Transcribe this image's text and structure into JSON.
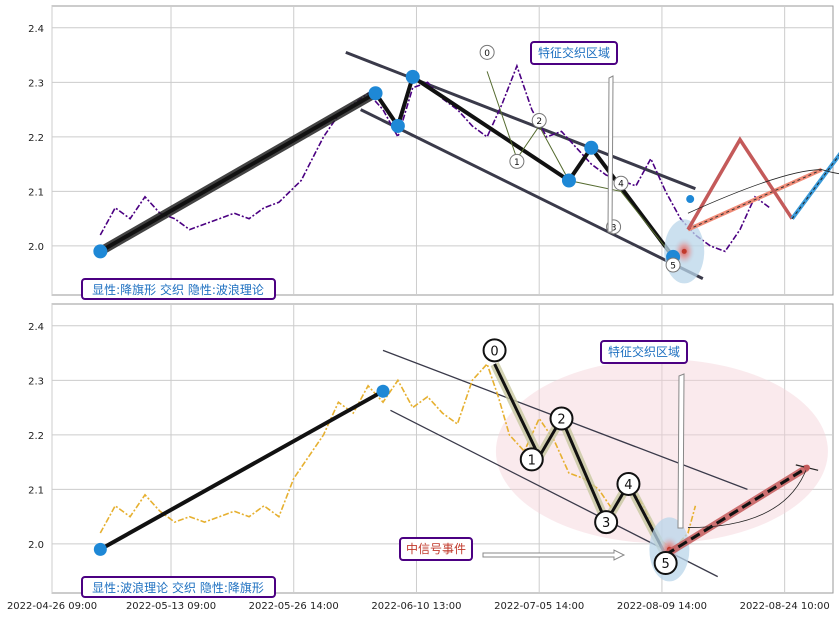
{
  "colors": {
    "grid": "#cccccc",
    "frame": "#999999",
    "top_price": "#4b0082",
    "bottom_price": "#e6b030",
    "pivot": "#1e88d6",
    "channel": "#3a3a4a",
    "box_border": "#4b0082",
    "box_text_blue": "#1e70c0",
    "box_text_red": "#c0392b",
    "proj_red": "#c45a5a",
    "proj_blue": "#3a9ad9",
    "proj_salmon": "#f08c78",
    "ellipse_fill": "#f3d0d6",
    "highlight_fill": "#b9d6ea"
  },
  "chart_data": [
    {
      "type": "line",
      "panel": "top",
      "ylim": [
        1.91,
        2.44
      ],
      "yticks": [
        "2.0",
        "2.1",
        "2.2",
        "2.3",
        "2.4"
      ],
      "ytick_values": [
        2.0,
        2.1,
        2.2,
        2.3,
        2.4
      ],
      "grid": true,
      "series_price": {
        "x": [
          0.0,
          2.0,
          4.0,
          6.0,
          8.0,
          10.0,
          12.0,
          14.0,
          16.0,
          18.0,
          20.0,
          22.0,
          24.0,
          25.5,
          27.0,
          28.5,
          30.0,
          32.0,
          34.0,
          36.0,
          38.0,
          40.0,
          42.0,
          44.0,
          46.0,
          48.0,
          50.0,
          52.0,
          54.0,
          56.0,
          58.0,
          60.0,
          62.0,
          64.0,
          66.0,
          68.0,
          70.0,
          72.0,
          74.0,
          76.0,
          78.0,
          80.0,
          82.0,
          84.0,
          86.0,
          88.0,
          90.0
        ],
        "y": [
          2.02,
          2.07,
          2.05,
          2.09,
          2.06,
          2.05,
          2.03,
          2.04,
          2.05,
          2.06,
          2.05,
          2.07,
          2.08,
          2.1,
          2.12,
          2.16,
          2.2,
          2.24,
          2.26,
          2.28,
          2.25,
          2.2,
          2.29,
          2.3,
          2.27,
          2.25,
          2.22,
          2.2,
          2.26,
          2.33,
          2.25,
          2.2,
          2.21,
          2.18,
          2.15,
          2.13,
          2.12,
          2.11,
          2.16,
          2.1,
          2.05,
          2.02,
          2.0,
          1.99,
          2.03,
          2.09,
          2.07
        ]
      },
      "zigzag": {
        "x": [
          0.0,
          37.0,
          40.0,
          42.0,
          63.0,
          66.0,
          77.0
        ],
        "y": [
          1.99,
          2.28,
          2.22,
          2.31,
          2.12,
          2.18,
          1.98
        ]
      },
      "pivots": {
        "x": [
          0.0,
          37.0,
          40.0,
          42.0,
          63.0,
          66.0,
          77.0
        ],
        "y": [
          1.99,
          2.28,
          2.22,
          2.31,
          2.12,
          2.18,
          1.98
        ]
      },
      "channel": [
        {
          "x": [
            33.0,
            80.0
          ],
          "y": [
            2.355,
            2.105
          ]
        },
        {
          "x": [
            35.0,
            81.0
          ],
          "y": [
            2.25,
            1.94
          ]
        }
      ],
      "wave_labels": [
        {
          "label": "0",
          "x": 52.0,
          "y": 2.355
        },
        {
          "label": "1",
          "x": 56.0,
          "y": 2.155
        },
        {
          "label": "2",
          "x": 59.0,
          "y": 2.23
        },
        {
          "label": "3",
          "x": 69.0,
          "y": 2.035
        },
        {
          "label": "4",
          "x": 70.0,
          "y": 2.115
        },
        {
          "label": "5",
          "x": 77.0,
          "y": 1.965
        }
      ],
      "projection": {
        "red_zigzag": {
          "x": [
            79.0,
            86.0,
            93.0
          ],
          "y": [
            2.03,
            2.195,
            2.05
          ]
        },
        "blue": {
          "x": [
            93.0,
            112.0
          ],
          "y": [
            2.05,
            2.4
          ]
        },
        "salmon": {
          "x": [
            79.0,
            97.0
          ],
          "y": [
            2.03,
            2.14
          ]
        }
      },
      "box_feature": {
        "text": "特征交织区域",
        "x": 77.0,
        "y": 2.35
      },
      "box_label": {
        "text": "显性:降旗形 交织 隐性:波浪理论"
      }
    },
    {
      "type": "line",
      "panel": "bottom",
      "ylim": [
        1.91,
        2.44
      ],
      "yticks": [
        "2.0",
        "2.1",
        "2.2",
        "2.3",
        "2.4"
      ],
      "ytick_values": [
        2.0,
        2.1,
        2.2,
        2.3,
        2.4
      ],
      "xticks": [
        "2022-04-26 09:00",
        "2022-05-13 09:00",
        "2022-05-26 14:00",
        "2022-06-10 13:00",
        "2022-07-05 14:00",
        "2022-08-09 14:00",
        "2022-08-24 10:00"
      ],
      "xtick_values": [
        -6.5,
        9.5,
        26.0,
        42.5,
        59.0,
        75.5,
        92.0
      ],
      "grid": true,
      "series_price": {
        "x": [
          0.0,
          2.0,
          4.0,
          6.0,
          8.0,
          10.0,
          12.0,
          14.0,
          16.0,
          18.0,
          20.0,
          22.0,
          24.0,
          26.0,
          28.0,
          30.0,
          32.0,
          34.0,
          36.0,
          38.0,
          40.0,
          42.0,
          44.0,
          46.0,
          48.0,
          50.0,
          52.0,
          53.5,
          55.0,
          57.0,
          59.0,
          61.0,
          63.0,
          65.0,
          67.0,
          69.0,
          71.0,
          73.0,
          75.0,
          77.0,
          79.0,
          80.0
        ],
        "y": [
          2.02,
          2.07,
          2.05,
          2.09,
          2.06,
          2.04,
          2.05,
          2.04,
          2.05,
          2.06,
          2.05,
          2.07,
          2.05,
          2.12,
          2.16,
          2.2,
          2.26,
          2.24,
          2.29,
          2.26,
          2.3,
          2.25,
          2.27,
          2.24,
          2.22,
          2.3,
          2.33,
          2.27,
          2.2,
          2.17,
          2.23,
          2.19,
          2.13,
          2.12,
          2.1,
          2.06,
          2.11,
          2.07,
          2.01,
          1.99,
          2.02,
          2.07
        ]
      },
      "zigzag": {
        "x": [
          0.0,
          38.0
        ],
        "y": [
          1.99,
          2.28
        ]
      },
      "pivots": {
        "x": [
          0.0,
          38.0
        ],
        "y": [
          1.99,
          2.28
        ]
      },
      "wave_path": {
        "x": [
          53.0,
          59.0,
          62.0,
          68.0,
          71.0,
          76.0
        ],
        "y": [
          2.33,
          2.16,
          2.23,
          2.04,
          2.11,
          1.98
        ]
      },
      "channel": [
        {
          "x": [
            38.0,
            87.0
          ],
          "y": [
            2.355,
            2.1
          ]
        },
        {
          "x": [
            39.0,
            83.0
          ],
          "y": [
            2.245,
            1.94
          ]
        }
      ],
      "wave_labels": [
        {
          "label": "0",
          "x": 53.0,
          "y": 2.355
        },
        {
          "label": "1",
          "x": 58.0,
          "y": 2.155
        },
        {
          "label": "2",
          "x": 62.0,
          "y": 2.23
        },
        {
          "label": "3",
          "x": 68.0,
          "y": 2.04
        },
        {
          "label": "4",
          "x": 71.0,
          "y": 2.11
        },
        {
          "label": "5",
          "x": 76.0,
          "y": 1.965
        }
      ],
      "projection": {
        "red": {
          "x": [
            76.0,
            95.0
          ],
          "y": [
            1.98,
            2.14
          ]
        }
      },
      "box_feature": {
        "text": "特征交织区域",
        "x": 75.0,
        "y": 2.35
      },
      "box_event": {
        "text": "中信号事件",
        "x": 44.0,
        "y": 1.99
      },
      "box_label": {
        "text": "显性:波浪理论 交织 隐性:降旗形"
      }
    }
  ]
}
